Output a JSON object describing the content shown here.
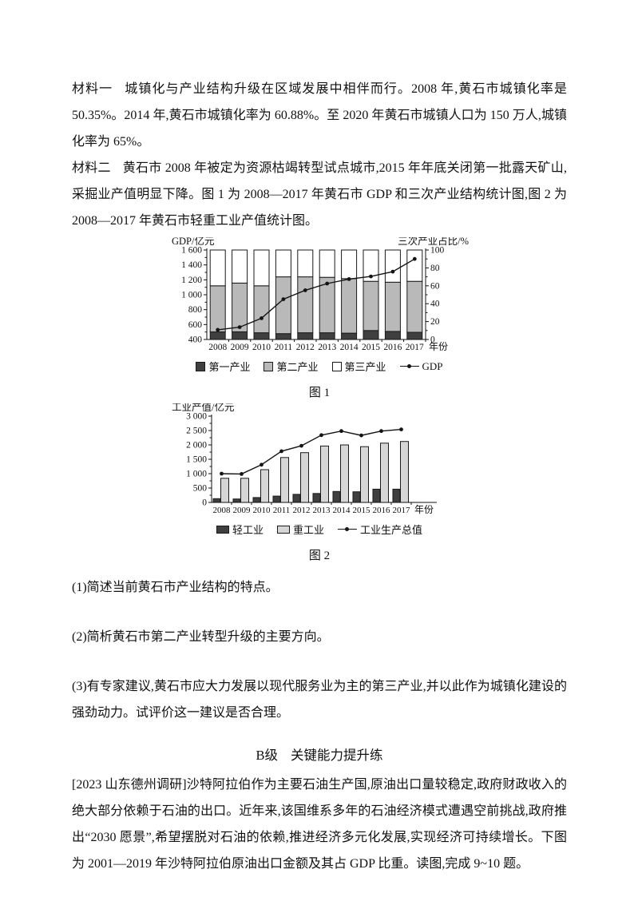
{
  "materials": [
    {
      "label": "材料一",
      "text": "城镇化与产业结构升级在区域发展中相伴而行。2008 年,黄石市城镇化率是 50.35%。2014 年,黄石市城镇化率为 60.88%。至 2020 年黄石市城镇人口为 150 万人,城镇化率为 65%。"
    },
    {
      "label": "材料二",
      "text": "黄石市 2008 年被定为资源枯竭转型试点城市,2015 年年底关闭第一批露天矿山,采掘业产值明显下降。图 1 为 2008—2017 年黄石市 GDP 和三次产业结构统计图,图 2 为 2008—2017 年黄石市轻重工业产值统计图。"
    }
  ],
  "questions": [
    "(1)简述当前黄石市产业结构的特点。",
    "(2)简析黄石市第二产业转型升级的主要方向。",
    "(3)有专家建议,黄石市应大力发展以现代服务业为主的第三产业,并以此作为城镇化建设的强劲动力。试评价这一建议是否合理。"
  ],
  "section": {
    "level": "B级",
    "title": "关键能力提升练"
  },
  "exercise_intro": "[2023 山东德州调研]沙特阿拉伯作为主要石油生产国,原油出口量较稳定,政府财政收入的绝大部分依赖于石油的出口。近年来,该国维系多年的石油经济模式遭遇空前挑战,政府推出“2030 愿景”,希望摆脱对石油的依赖,推进经济多元化发展,实现经济可持续增长。下图为 2001—2019 年沙特阿拉伯原油出口金额及其占 GDP 比重。读图,完成 9~10 题。",
  "chart_data": [
    {
      "type": "bar",
      "variant": "stacked-percent-with-line-overlay",
      "caption": "图 1",
      "title_left": "GDP/亿元",
      "title_right": "三次产业占比/%",
      "xlabel": "年份",
      "stacked": true,
      "categories": [
        "2008",
        "2009",
        "2010",
        "2011",
        "2012",
        "2013",
        "2014",
        "2015",
        "2016",
        "2017"
      ],
      "left_axis": {
        "min": 400,
        "max": 1600,
        "tick_values": [
          400,
          600,
          800,
          1000,
          1200,
          1400,
          1600
        ],
        "tick_labels": [
          "400",
          "600",
          "800",
          "1 000",
          "1 200",
          "1 400",
          "1 600"
        ],
        "minor_step": 100
      },
      "right_axis": {
        "min": 0,
        "max": 100,
        "tick_values": [
          0,
          20,
          40,
          60,
          80,
          100
        ],
        "tick_labels": [
          "0",
          "20",
          "40",
          "60",
          "80",
          "100"
        ],
        "minor_step": 10
      },
      "series": [
        {
          "name": "第一产业",
          "kind": "bar",
          "axis": "right",
          "color": "#3f3f3f",
          "values": [
            8.5,
            8.5,
            7.5,
            6.5,
            7.5,
            7.5,
            7,
            10,
            9,
            8
          ]
        },
        {
          "name": "第二产业",
          "kind": "bar",
          "axis": "right",
          "color": "#b9b9b9",
          "values": [
            51.5,
            54.5,
            52.5,
            63.5,
            62.5,
            62,
            61,
            55,
            55,
            57
          ]
        },
        {
          "name": "第三产业",
          "kind": "bar",
          "axis": "right",
          "color": "#ffffff",
          "values": [
            40,
            37,
            40,
            30,
            30,
            30.5,
            32,
            35,
            36,
            35
          ]
        },
        {
          "name": "GDP",
          "kind": "line",
          "axis": "left",
          "color": "#141414",
          "values": [
            530,
            565,
            685,
            940,
            1060,
            1150,
            1210,
            1245,
            1310,
            1480
          ]
        }
      ]
    },
    {
      "type": "bar",
      "variant": "grouped-with-line-overlay",
      "caption": "图 2",
      "title_left": "工业产值/亿元",
      "xlabel": "年份",
      "stacked": false,
      "categories": [
        "2008",
        "2009",
        "2010",
        "2011",
        "2012",
        "2013",
        "2014",
        "2015",
        "2016",
        "2017"
      ],
      "left_axis": {
        "min": 0,
        "max": 3000,
        "tick_values": [
          0,
          500,
          1000,
          1500,
          2000,
          2500,
          3000
        ],
        "tick_labels": [
          "0",
          "500",
          "1 000",
          "1 500",
          "2 000",
          "2 500",
          "3 000"
        ],
        "minor_step": 250
      },
      "series": [
        {
          "name": "轻工业",
          "kind": "bar",
          "axis": "left",
          "color": "#3f3f3f",
          "values": [
            130,
            120,
            170,
            220,
            280,
            310,
            380,
            370,
            460,
            460
          ]
        },
        {
          "name": "重工业",
          "kind": "bar",
          "axis": "left",
          "color": "#d6d6d6",
          "values": [
            840,
            840,
            1140,
            1560,
            1730,
            1960,
            2000,
            1940,
            2060,
            2120
          ]
        },
        {
          "name": "工业生产总值",
          "kind": "line",
          "axis": "left",
          "color": "#141414",
          "values": [
            1000,
            990,
            1310,
            1780,
            1970,
            2340,
            2480,
            2330,
            2480,
            2540
          ]
        }
      ]
    }
  ]
}
